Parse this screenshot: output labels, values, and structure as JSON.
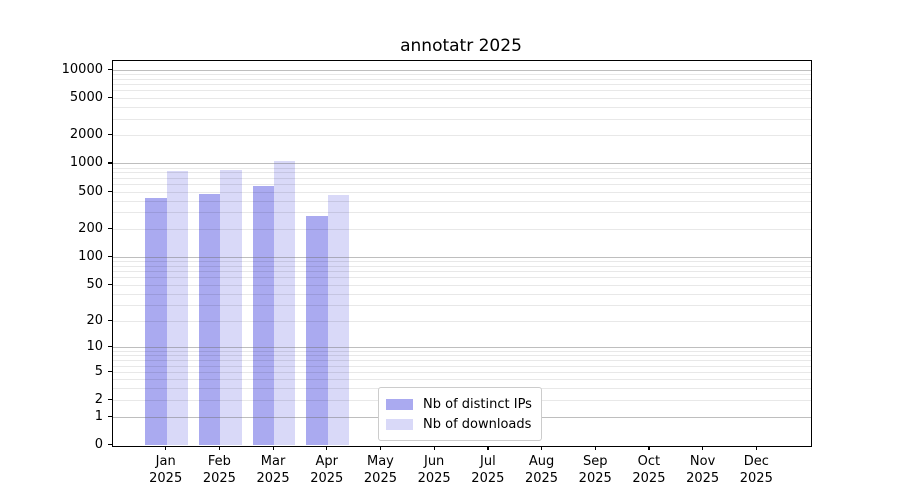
{
  "figure": {
    "title": "annotatr 2025",
    "background": "#ffffff"
  },
  "legend": {
    "items": [
      {
        "label": "Nb of distinct IPs",
        "color": "#aaaaf0"
      },
      {
        "label": "Nb of downloads",
        "color": "#d9d9f8"
      }
    ]
  },
  "chart_data": {
    "type": "bar",
    "title": "annotatr 2025",
    "categories": [
      "Jan 2025",
      "Feb 2025",
      "Mar 2025",
      "Apr 2025",
      "May 2025",
      "Jun 2025",
      "Jul 2025",
      "Aug 2025",
      "Sep 2025",
      "Oct 2025",
      "Nov 2025",
      "Dec 2025"
    ],
    "series": [
      {
        "name": "Nb of distinct IPs",
        "color": "#aaaaf0",
        "values": [
          430,
          480,
          580,
          280,
          0,
          0,
          0,
          0,
          0,
          0,
          0,
          0
        ]
      },
      {
        "name": "Nb of downloads",
        "color": "#d9d9f8",
        "values": [
          840,
          855,
          1080,
          460,
          0,
          0,
          0,
          0,
          0,
          0,
          0,
          0
        ]
      }
    ],
    "yscale": "log1p",
    "yticks": [
      0,
      1,
      2,
      5,
      10,
      20,
      50,
      100,
      200,
      500,
      1000,
      2000,
      5000,
      10000
    ],
    "ylim": [
      0,
      12400
    ],
    "xlabel": "",
    "ylabel": "",
    "grid": "both",
    "legend_position": "lower center inside"
  },
  "colors": {
    "bar_ips": "#aaaaf0",
    "bar_downloads": "#d9d9f8",
    "grid_major": "rgba(110,110,110,0.45)",
    "grid_minor": "rgba(0,0,0,0.09)",
    "spine": "#000000",
    "text": "#000000",
    "legend_border": "#cccccc",
    "background": "#ffffff"
  }
}
